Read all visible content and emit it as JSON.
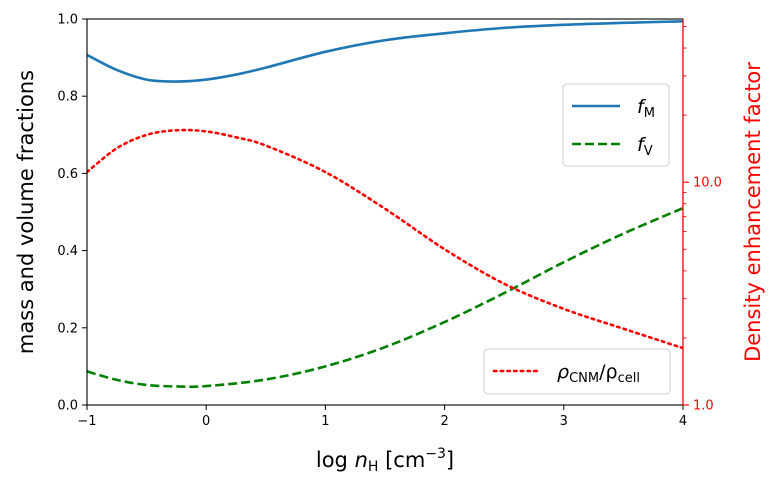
{
  "chart_data": {
    "type": "line",
    "x_axis": {
      "label_base": "log ",
      "label_var": "n",
      "label_sub": "H",
      "label_unit": " [cm",
      "label_sup": "−3",
      "label_end": "]",
      "range": [
        -1,
        4
      ],
      "ticks": [
        -1,
        0,
        1,
        2,
        3,
        4
      ],
      "tick_labels": [
        "−1",
        "0",
        "1",
        "2",
        "3",
        "4"
      ]
    },
    "y_left": {
      "label": "mass and volume fractions",
      "range": [
        0,
        1
      ],
      "ticks": [
        0,
        0.2,
        0.4,
        0.6,
        0.8,
        1.0
      ],
      "tick_labels": [
        "0.0",
        "0.2",
        "0.4",
        "0.6",
        "0.8",
        "1.0"
      ]
    },
    "y_right": {
      "label": "Density enhancement factor",
      "scale": "log",
      "range": [
        1,
        54
      ],
      "ticks": [
        1,
        10
      ],
      "tick_labels": [
        "1.0",
        "10.0"
      ],
      "color": "#ff0000"
    },
    "series": [
      {
        "key": "fM",
        "legend_var": "f",
        "legend_sub": "M",
        "axis": "left",
        "color": "#1f77b4",
        "dash": "solid",
        "x": [
          -1,
          -0.75,
          -0.5,
          -0.25,
          0,
          0.25,
          0.5,
          1,
          1.5,
          2,
          2.5,
          3,
          3.5,
          4
        ],
        "y": [
          0.907,
          0.868,
          0.843,
          0.838,
          0.843,
          0.856,
          0.874,
          0.915,
          0.945,
          0.963,
          0.977,
          0.985,
          0.99,
          0.994
        ]
      },
      {
        "key": "fV",
        "legend_var": "f",
        "legend_sub": "V",
        "axis": "left",
        "color": "#008000",
        "dash": "dashed",
        "x": [
          -1,
          -0.75,
          -0.5,
          -0.25,
          0,
          0.5,
          1,
          1.5,
          2,
          2.5,
          3,
          3.5,
          4
        ],
        "y": [
          0.087,
          0.065,
          0.052,
          0.048,
          0.049,
          0.066,
          0.1,
          0.15,
          0.215,
          0.29,
          0.37,
          0.444,
          0.51
        ]
      },
      {
        "key": "rho",
        "legend_num": "ρ",
        "legend_num_sub": "CNM",
        "legend_den": "/ρ",
        "legend_den_sub": "cell",
        "axis": "right",
        "color": "#ff0000",
        "dash": "dotted",
        "x": [
          -1,
          -0.75,
          -0.5,
          -0.25,
          0,
          0.25,
          0.5,
          1,
          1.5,
          2,
          2.5,
          3,
          3.5,
          4
        ],
        "y": [
          11.1,
          14.2,
          16.3,
          17.1,
          16.9,
          15.9,
          14.6,
          11.1,
          7.6,
          5.0,
          3.5,
          2.7,
          2.2,
          1.8
        ]
      }
    ],
    "legends": [
      {
        "position": "center-right",
        "entries": [
          "fM",
          "fV"
        ]
      },
      {
        "position": "lower-right",
        "entries": [
          "rho"
        ]
      }
    ],
    "grid": false
  }
}
